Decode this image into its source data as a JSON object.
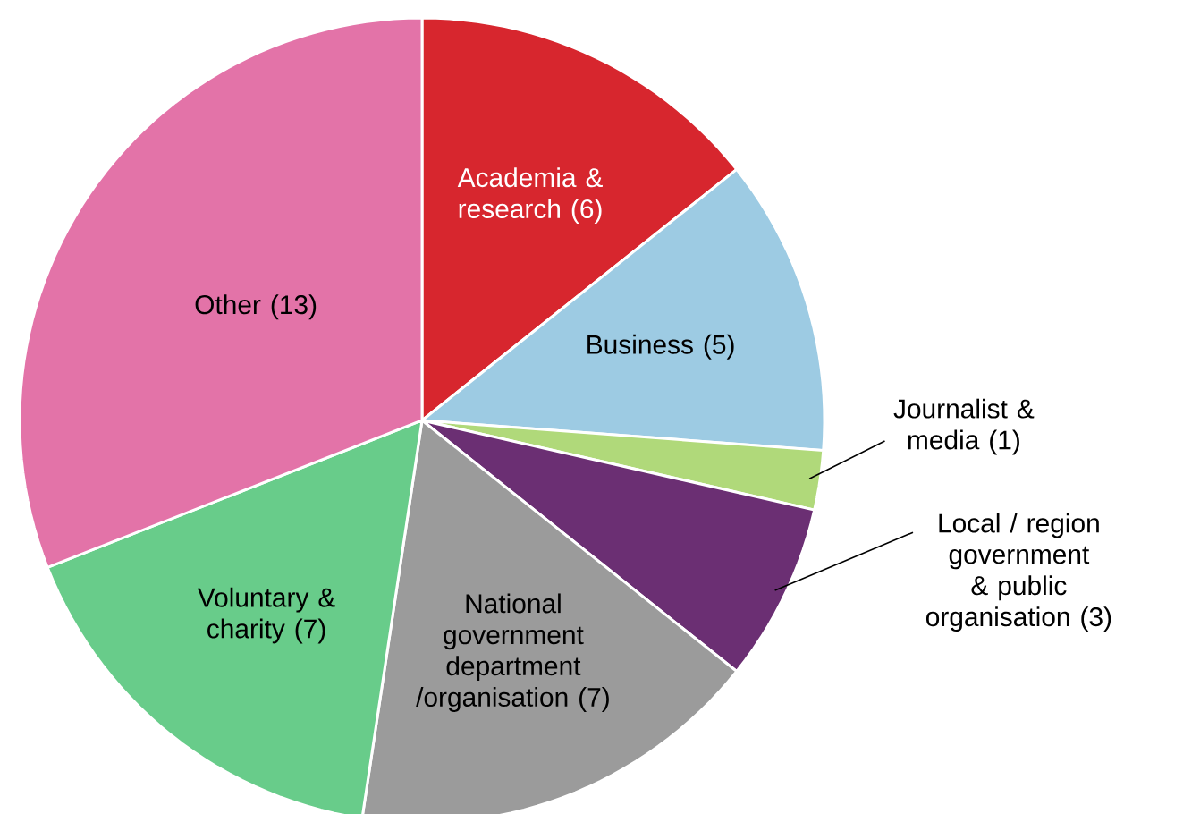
{
  "chart_data": {
    "type": "pie",
    "categories": [
      "Academia & research (6)",
      "Business (5)",
      "Journalist & media (1)",
      "Local / region government & public organisation (3)",
      "National government department /organisation (7)",
      "Voluntary & charity (7)",
      "Other (13)"
    ],
    "values": [
      6,
      5,
      1,
      3,
      7,
      7,
      13
    ],
    "colors": [
      "#d7262e",
      "#9dcbe3",
      "#b0d97a",
      "#6b2f73",
      "#9b9b9b",
      "#68cc8a",
      "#e373a8"
    ]
  }
}
